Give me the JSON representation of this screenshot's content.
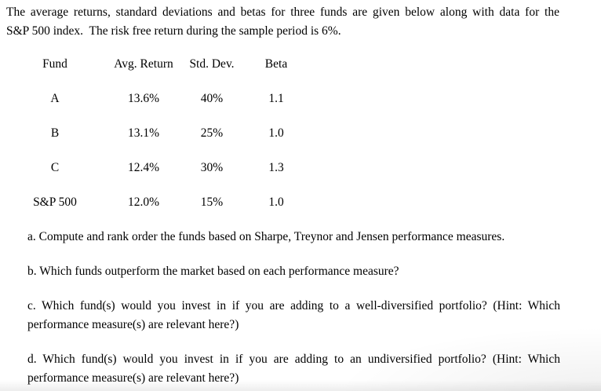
{
  "intro": {
    "line1": "The average returns, standard deviations and betas for three funds are given below along with data for the",
    "line2": "S&P 500 index.  The risk free return during the sample period is 6%."
  },
  "table": {
    "headers": [
      "Fund",
      "Avg. Return",
      "Std. Dev.",
      "Beta"
    ],
    "rows": [
      {
        "fund": "A",
        "avg_return": "13.6%",
        "std_dev": "40%",
        "beta": "1.1"
      },
      {
        "fund": "B",
        "avg_return": "13.1%",
        "std_dev": "25%",
        "beta": "1.0"
      },
      {
        "fund": "C",
        "avg_return": "12.4%",
        "std_dev": "30%",
        "beta": "1.3"
      },
      {
        "fund": "S&P 500",
        "avg_return": "12.0%",
        "std_dev": "15%",
        "beta": "1.0"
      }
    ]
  },
  "questions": [
    {
      "lines": [
        "a. Compute and rank order the funds based on Sharpe, Treynor and Jensen performance measures."
      ]
    },
    {
      "lines": [
        "b. Which funds outperform the market based on each performance measure?"
      ]
    },
    {
      "lines": [
        "c. Which fund(s) would you invest in if you are adding to a well-diversified portfolio? (Hint: Which",
        "performance measure(s) are relevant here?)"
      ]
    },
    {
      "lines": [
        "d. Which fund(s) would you invest in if you are adding to an undiversified portfolio? (Hint: Which",
        "performance measure(s) are relevant here?)"
      ]
    }
  ],
  "colors": {
    "text": "#000000",
    "background": "#ffffff",
    "edge_shadow": "#e9e9e9"
  }
}
